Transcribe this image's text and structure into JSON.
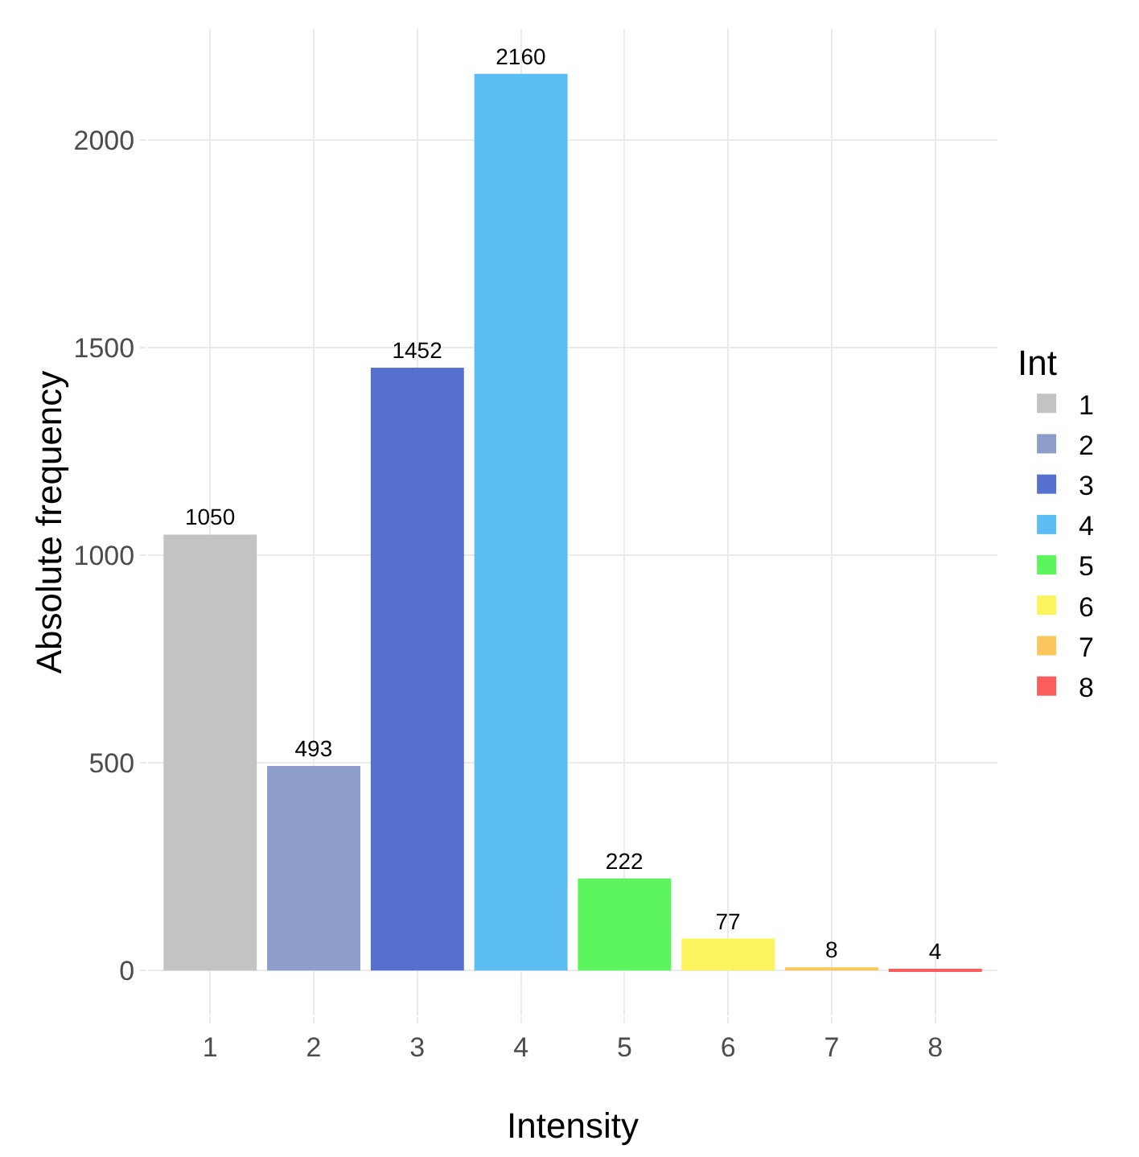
{
  "chart_data": {
    "type": "bar",
    "xlabel": "Intensity",
    "ylabel": "Absolute frequency",
    "legend_title": "Int",
    "categories": [
      "1",
      "2",
      "3",
      "4",
      "5",
      "6",
      "7",
      "8"
    ],
    "series": [
      {
        "name": "1",
        "color": "#c3c3c3",
        "values": [
          1050,
          null,
          null,
          null,
          null,
          null,
          null,
          null
        ]
      },
      {
        "name": "2",
        "color": "#8d9dca",
        "values": [
          null,
          493,
          null,
          null,
          null,
          null,
          null,
          null
        ]
      },
      {
        "name": "3",
        "color": "#5670d0",
        "values": [
          null,
          null,
          1452,
          null,
          null,
          null,
          null,
          null
        ]
      },
      {
        "name": "4",
        "color": "#5bbdf2",
        "values": [
          null,
          null,
          null,
          2160,
          null,
          null,
          null,
          null
        ]
      },
      {
        "name": "5",
        "color": "#5df55d",
        "values": [
          null,
          null,
          null,
          null,
          222,
          null,
          null,
          null
        ]
      },
      {
        "name": "6",
        "color": "#fbf45d",
        "values": [
          null,
          null,
          null,
          null,
          null,
          77,
          null,
          null
        ]
      },
      {
        "name": "7",
        "color": "#fbc65d",
        "values": [
          null,
          null,
          null,
          null,
          null,
          null,
          8,
          null
        ]
      },
      {
        "name": "8",
        "color": "#fb5d5d",
        "values": [
          null,
          null,
          null,
          null,
          null,
          null,
          null,
          4
        ]
      }
    ],
    "ylim": [
      -108,
      2268
    ],
    "yticks": [
      0,
      500,
      1000,
      1500,
      2000
    ],
    "grid": true,
    "legend": "right",
    "data_labels": true
  }
}
